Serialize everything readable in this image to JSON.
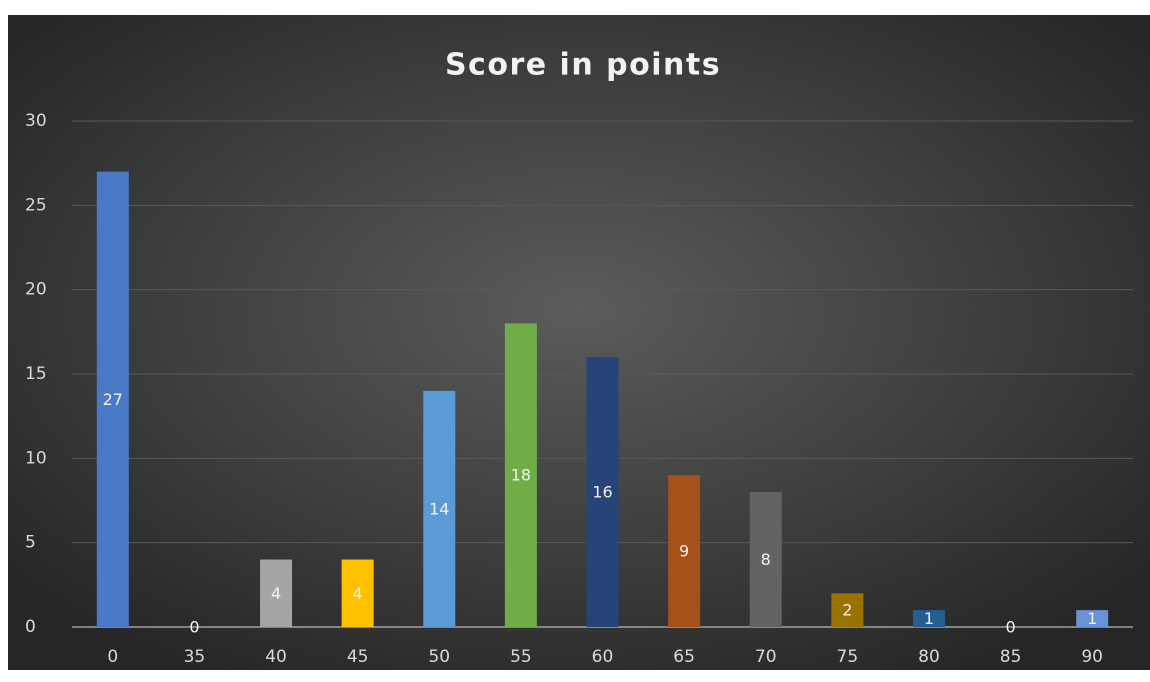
{
  "chart_data": {
    "type": "bar",
    "title": "Score in points",
    "categories": [
      "0",
      "35",
      "40",
      "45",
      "50",
      "55",
      "60",
      "65",
      "70",
      "75",
      "80",
      "85",
      "90"
    ],
    "values": [
      27,
      0,
      4,
      4,
      14,
      18,
      16,
      9,
      8,
      2,
      1,
      0,
      1
    ],
    "colors": [
      "#4a79c8",
      "#4a79c8",
      "#a5a5a5",
      "#ffc000",
      "#5b9bd5",
      "#70ad47",
      "#264478",
      "#a6501a",
      "#636363",
      "#997300",
      "#255e91",
      "#4a79c8",
      "#6a92d6"
    ],
    "ylim": [
      0,
      30
    ],
    "yticks": [
      0,
      5,
      10,
      15,
      20,
      25,
      30
    ],
    "grid": true
  }
}
